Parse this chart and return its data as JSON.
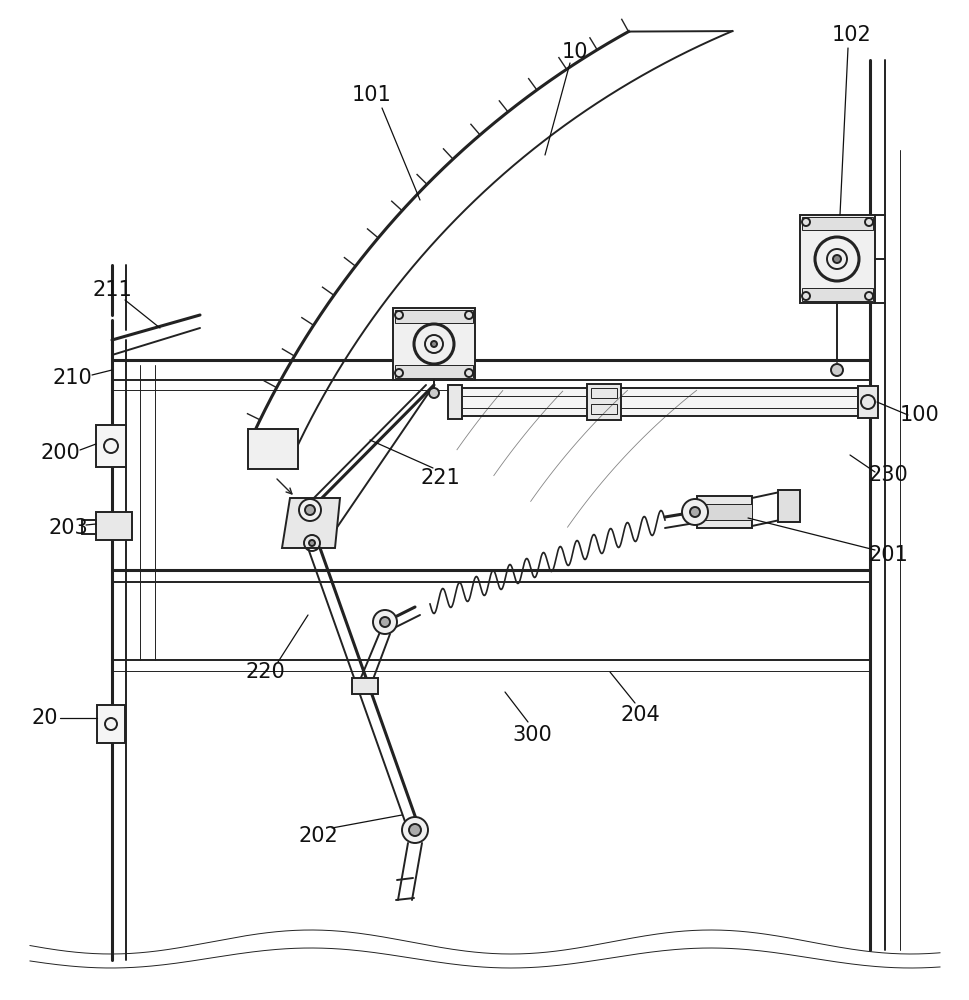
{
  "bg_color": "#ffffff",
  "line_color": "#222222",
  "label_color": "#111111",
  "label_fontsize": 15,
  "lw_main": 1.4,
  "lw_thick": 2.2,
  "lw_thin": 0.7
}
